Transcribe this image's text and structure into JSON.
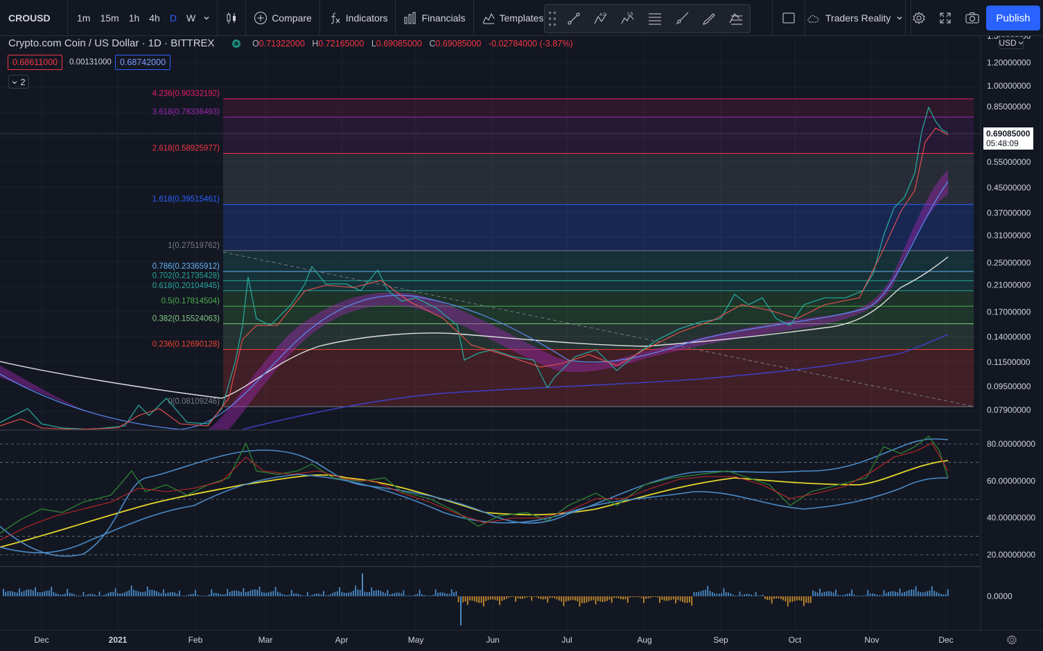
{
  "toolbar": {
    "symbol": "CROUSD",
    "intervals": [
      "1m",
      "15m",
      "1h",
      "4h",
      "D",
      "W"
    ],
    "active_interval": "D",
    "compare_label": "Compare",
    "indicators_label": "Indicators",
    "financials_label": "Financials",
    "templates_label": "Templates",
    "layout_name": "Traders Reality",
    "publish_label": "Publish",
    "accent": "#2962ff"
  },
  "legend": {
    "title": "Crypto.com Coin / US Dollar · 1D · BITTREX",
    "open_key": "O",
    "open": "0.71322000",
    "high_key": "H",
    "high": "0.72165000",
    "low_key": "L",
    "low": "0.69085000",
    "close_key": "C",
    "close": "0.69085000",
    "change": "-0.02784000 (-3.87%)",
    "bid": "0.68611000",
    "spread": "0.00131000",
    "ask": "0.68742000",
    "collapse_label": "2",
    "down_color": "#f23645"
  },
  "price_axis": {
    "currency": "USD",
    "last_price": "0.69085000",
    "countdown": "05:48:09",
    "ticks": [
      "1.50000000",
      "1.20000000",
      "1.00000000",
      "0.85000000",
      "0.55000000",
      "0.45000000",
      "0.37000000",
      "0.31000000",
      "0.25000000",
      "0.21000000",
      "0.17000000",
      "0.14000000",
      "0.11500000",
      "0.09500000",
      "0.07900000"
    ]
  },
  "fib_levels": [
    {
      "label": "4.236(0.90332192)",
      "price": 0.90332192,
      "color": "#e91e63"
    },
    {
      "label": "3.618(0.78336493)",
      "price": 0.78336493,
      "color": "#9c27b0"
    },
    {
      "label": "2.618(0.58925977)",
      "price": 0.58925977,
      "color": "#f23645"
    },
    {
      "label": "1.618(0.39515461)",
      "price": 0.39515461,
      "color": "#2962ff"
    },
    {
      "label": "1(0.27519762)",
      "price": 0.27519762,
      "color": "#787b86"
    },
    {
      "label": "0.786(0.23365912)",
      "price": 0.23365912,
      "color": "#64b5f6"
    },
    {
      "label": "0.702(0.21735428)",
      "price": 0.21735428,
      "color": "#26a69a"
    },
    {
      "label": "0.618(0.20104945)",
      "price": 0.20104945,
      "color": "#26a69a"
    },
    {
      "label": "0.5(0.17814504)",
      "price": 0.17814504,
      "color": "#4caf50"
    },
    {
      "label": "0.382(0.15524063)",
      "price": 0.15524063,
      "color": "#81c784"
    },
    {
      "label": "0.236(0.12690128)",
      "price": 0.12690128,
      "color": "#f44336"
    },
    {
      "label": "0(0.08109246)",
      "price": 0.08109246,
      "color": "#787b86"
    }
  ],
  "rsi_axis": {
    "ticks": [
      "80.00000000",
      "60.00000000",
      "40.00000000",
      "20.00000000"
    ]
  },
  "volume_axis": {
    "ticks": [
      "0.0000"
    ]
  },
  "time_axis": {
    "labels": [
      "Dec",
      "2021",
      "Feb",
      "Mar",
      "Apr",
      "May",
      "Jun",
      "Jul",
      "Aug",
      "Sep",
      "Oct",
      "Nov",
      "Dec"
    ]
  }
}
